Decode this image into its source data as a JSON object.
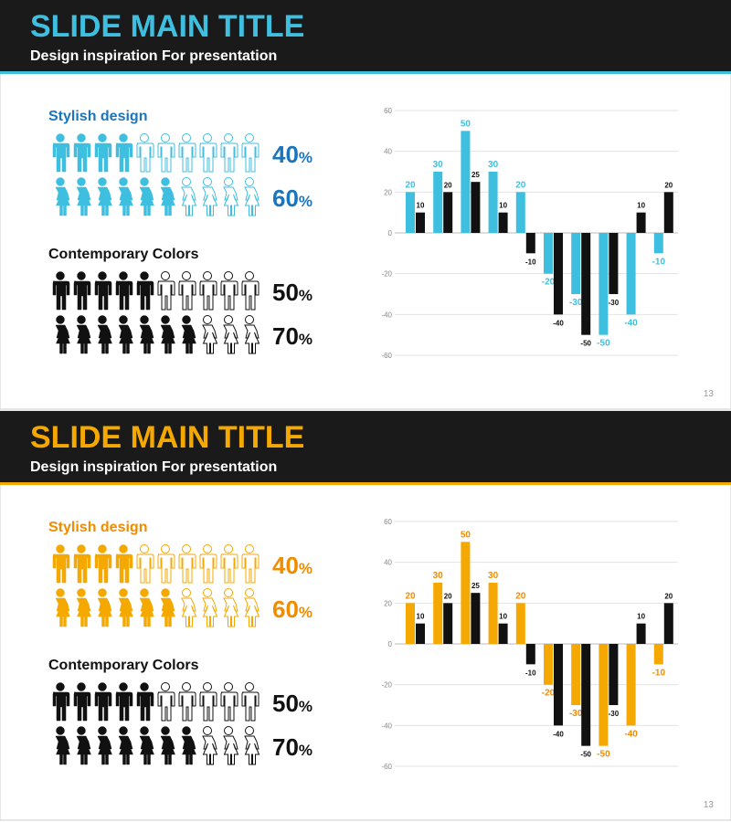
{
  "slides": [
    {
      "title": "SLIDE MAIN TITLE",
      "subtitle": "Design inspiration For presentation",
      "page": "13",
      "accent": "#3fbfe0",
      "heading_color": "#1b75bc",
      "groups": [
        {
          "heading": "Stylish design",
          "color": "#3fbfe0",
          "label_color": "#1b75bc",
          "rows": [
            {
              "figure": "man",
              "value": 40,
              "unit": "%"
            },
            {
              "figure": "woman",
              "value": 60,
              "unit": "%"
            }
          ]
        },
        {
          "heading": "Contemporary Colors",
          "color": "#111111",
          "label_color": "#111111",
          "rows": [
            {
              "figure": "man",
              "value": 50,
              "unit": "%"
            },
            {
              "figure": "woman",
              "value": 70,
              "unit": "%"
            }
          ]
        }
      ]
    },
    {
      "title": "SLIDE MAIN TITLE",
      "subtitle": "Design inspiration For presentation",
      "page": "13",
      "accent": "#f5a800",
      "heading_color": "#f08c00",
      "groups": [
        {
          "heading": "Stylish design",
          "color": "#f5a800",
          "label_color": "#f08c00",
          "rows": [
            {
              "figure": "man",
              "value": 40,
              "unit": "%"
            },
            {
              "figure": "woman",
              "value": 60,
              "unit": "%"
            }
          ]
        },
        {
          "heading": "Contemporary Colors",
          "color": "#111111",
          "label_color": "#111111",
          "rows": [
            {
              "figure": "man",
              "value": 50,
              "unit": "%"
            },
            {
              "figure": "woman",
              "value": 70,
              "unit": "%"
            }
          ]
        }
      ]
    }
  ],
  "chart_data": [
    {
      "type": "bar",
      "categories": [
        null,
        null,
        null,
        null,
        null,
        null,
        null,
        null,
        null,
        null
      ],
      "ylim": [
        -60,
        60
      ],
      "yticks": [
        60,
        40,
        20,
        0,
        -20,
        -40,
        -60
      ],
      "grid": true,
      "series": [
        {
          "color": "#3fbfe0",
          "label_color": "#3fbfe0",
          "values": [
            20,
            30,
            50,
            30,
            20,
            -20,
            -30,
            -50,
            -40,
            -10
          ]
        },
        {
          "color": "#111111",
          "label_color": "#111111",
          "values": [
            10,
            20,
            25,
            10,
            -10,
            -40,
            -50,
            -30,
            10,
            20
          ]
        }
      ]
    },
    {
      "type": "bar",
      "categories": [
        null,
        null,
        null,
        null,
        null,
        null,
        null,
        null,
        null,
        null
      ],
      "ylim": [
        -60,
        60
      ],
      "yticks": [
        60,
        40,
        20,
        0,
        -20,
        -40,
        -60
      ],
      "grid": true,
      "series": [
        {
          "color": "#f5a800",
          "label_color": "#f08c00",
          "values": [
            20,
            30,
            50,
            30,
            20,
            -20,
            -30,
            -50,
            -40,
            -10
          ]
        },
        {
          "color": "#111111",
          "label_color": "#111111",
          "values": [
            10,
            20,
            25,
            10,
            -10,
            -40,
            -50,
            -30,
            10,
            20
          ]
        }
      ]
    }
  ]
}
